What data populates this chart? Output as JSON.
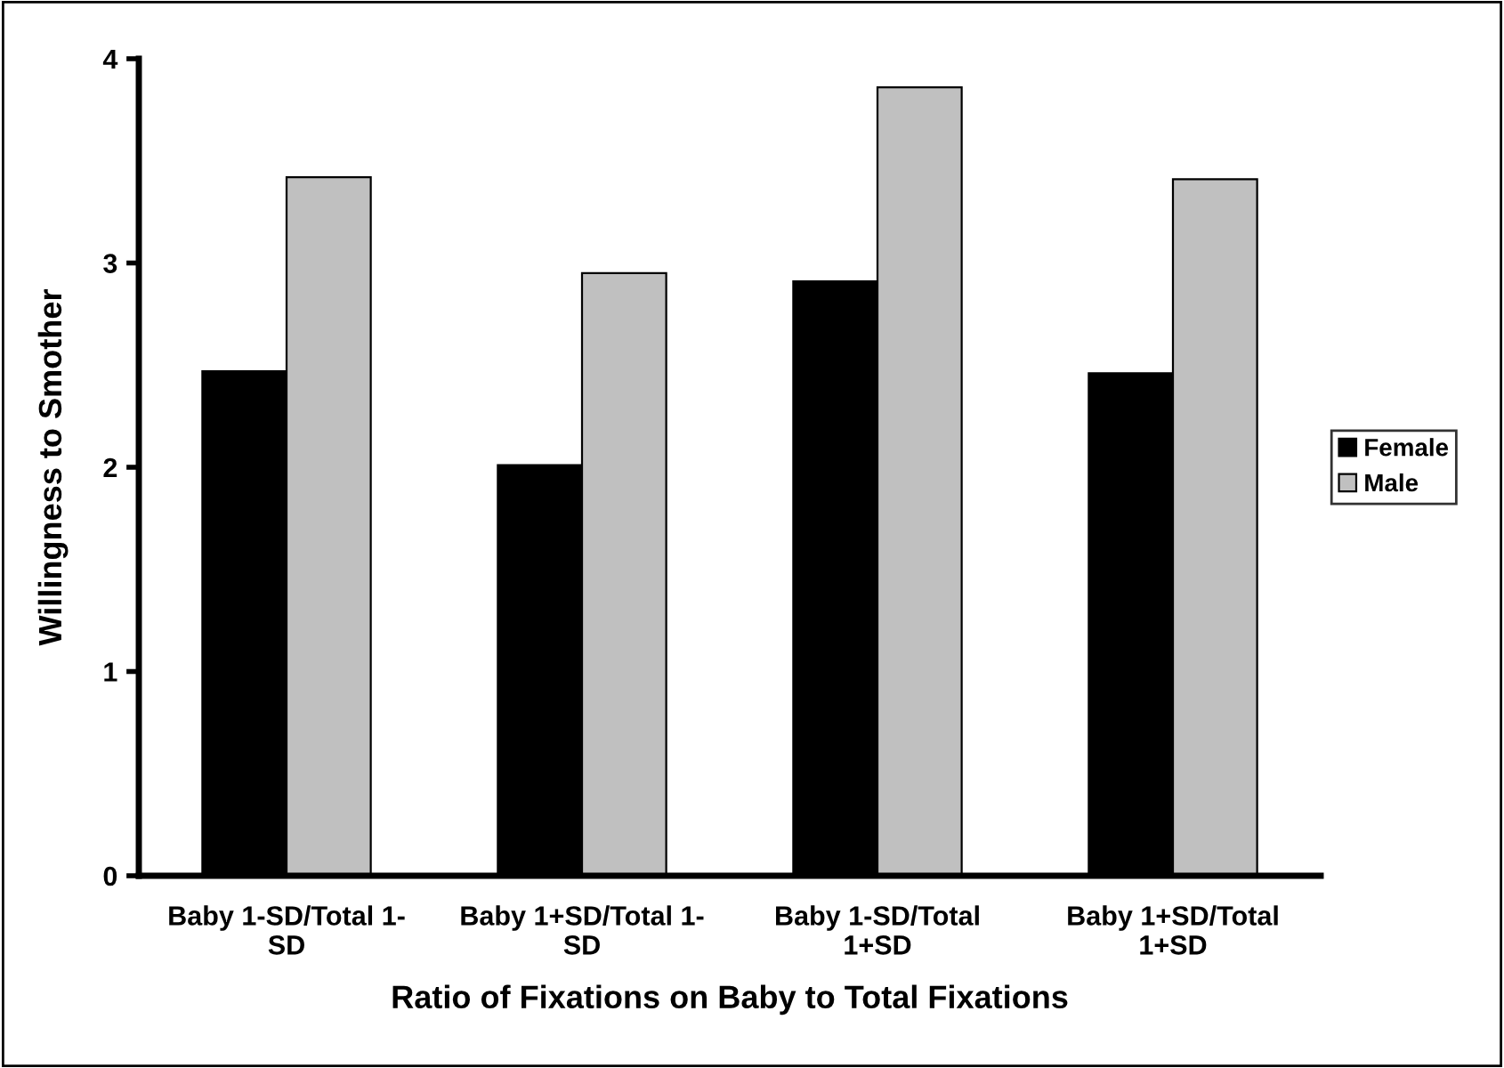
{
  "chart_data": {
    "type": "bar",
    "xlabel": "Ratio of Fixations on Baby to Total Fixations",
    "ylabel": "Willingness to Smother",
    "categories": [
      "Baby 1-SD/Total 1-\nSD",
      "Baby 1+SD/Total 1-\nSD",
      "Baby 1-SD/Total\n1+SD",
      "Baby 1+SD/Total\n1+SD"
    ],
    "series": [
      {
        "name": "Female",
        "color": "#000000",
        "values": [
          2.47,
          2.01,
          2.91,
          2.46
        ]
      },
      {
        "name": "Male",
        "color": "#c0c0c0",
        "values": [
          3.42,
          2.95,
          3.86,
          3.41
        ]
      }
    ],
    "ylim": [
      0,
      4
    ],
    "yticks": [
      0,
      1,
      2,
      3,
      4
    ],
    "grid": false,
    "legend": "right"
  }
}
